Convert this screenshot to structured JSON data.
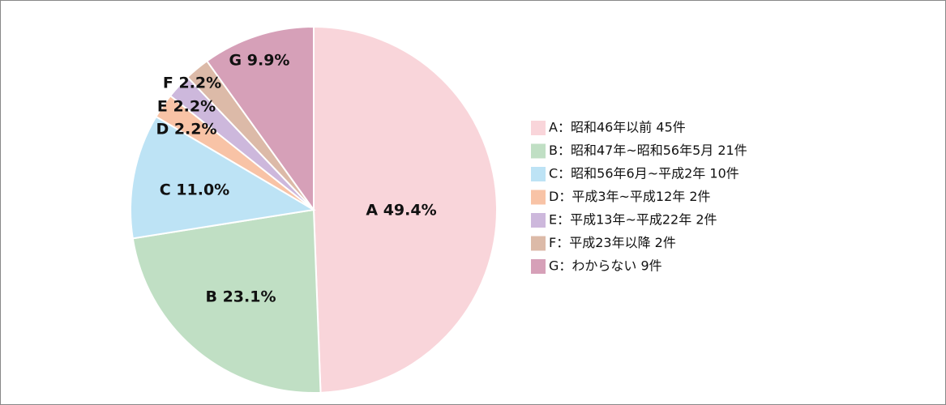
{
  "chart_data": {
    "type": "pie",
    "categories": [
      "A：昭和46年以前 45件",
      "B：昭和47年~昭和56年5月 21件",
      "C：昭和56年6月~平成2年 10件",
      "D：平成3年~平成12年 2件",
      "E：平成13年~平成22年 2件",
      "F：平成23年以降 2件",
      "G：わからない 9件"
    ],
    "values": [
      49.4,
      23.1,
      11.0,
      2.2,
      2.2,
      2.2,
      9.9
    ],
    "value_labels": [
      "A 49.4%",
      "B 23.1%",
      "C 11.0%",
      "D 2.2%",
      "E 2.2%",
      "F 2.2%",
      "G 9.9%"
    ],
    "colors": [
      "#f9d5da",
      "#c0dfc4",
      "#bde3f5",
      "#f8c3a6",
      "#cdb8dc",
      "#dcbaa8",
      "#d6a0b8"
    ],
    "legend": "right"
  }
}
